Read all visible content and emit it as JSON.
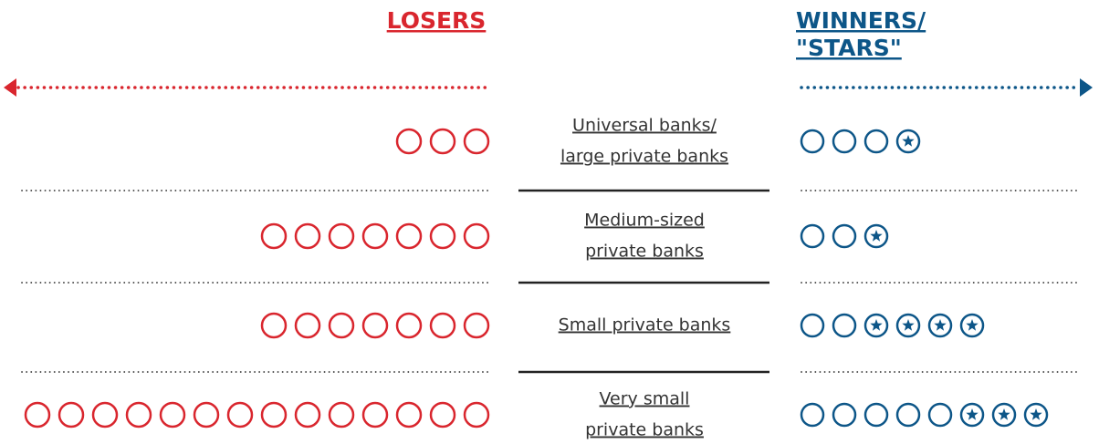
{
  "chart_data": {
    "type": "pictogram",
    "categories": [
      [
        "Universal banks/",
        "large private banks"
      ],
      [
        "Medium-sized",
        "private banks"
      ],
      [
        "Small private banks"
      ],
      [
        "Very small",
        "private banks"
      ]
    ],
    "losers": {
      "name": [
        "LOSERS"
      ],
      "color": "#d9262e",
      "values": [
        3,
        7,
        7,
        14
      ]
    },
    "winners": {
      "name": [
        "WINNERS/",
        "\"STARS\""
      ],
      "color": "#0d5688",
      "values": [
        3,
        2,
        2,
        5
      ],
      "stars": [
        1,
        1,
        4,
        3
      ]
    }
  }
}
